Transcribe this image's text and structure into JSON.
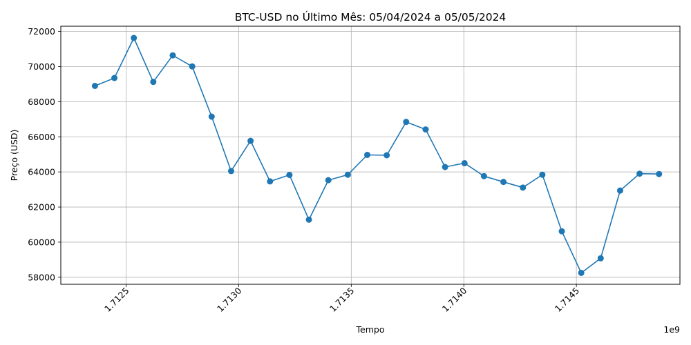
{
  "chart_data": {
    "type": "line",
    "title": "BTC-USD no Último Mês: 05/04/2024 a 05/05/2024",
    "xlabel": "Tempo",
    "ylabel": "Preço (USD)",
    "x_offset_label": "1e9",
    "xlim": [
      1712210000,
      1714960000
    ],
    "ylim": [
      57600,
      72300
    ],
    "x_ticks": [
      1712500000,
      1713000000,
      1713500000,
      1714000000,
      1714500000
    ],
    "x_tick_labels": [
      "1.7125",
      "1.7130",
      "1.7135",
      "1.7140",
      "1.7145"
    ],
    "y_ticks": [
      58000,
      60000,
      62000,
      64000,
      66000,
      68000,
      70000,
      72000
    ],
    "y_tick_labels": [
      "58000",
      "60000",
      "62000",
      "64000",
      "66000",
      "68000",
      "70000",
      "72000"
    ],
    "grid": true,
    "line_color": "#1f77b4",
    "series": [
      {
        "x": [
          1712361600,
          1712448000,
          1712534400,
          1712620800,
          1712707200,
          1712793600,
          1712880000,
          1712966400,
          1713052800,
          1713139200,
          1713225600,
          1713312000,
          1713398400,
          1713484800,
          1713571200,
          1713657600,
          1713744000,
          1713830400,
          1713916800,
          1714003200,
          1714089600,
          1714176000,
          1714262400,
          1714348800,
          1714435200,
          1714521600,
          1714608000,
          1714694400,
          1714780800,
          1714867200
        ],
        "y": [
          68900,
          69350,
          71630,
          69130,
          70640,
          70010,
          67150,
          64050,
          65770,
          63460,
          63830,
          61280,
          63530,
          63840,
          64970,
          64950,
          66850,
          66420,
          64280,
          64500,
          63760,
          63430,
          63110,
          63840,
          60620,
          58250,
          59080,
          62940,
          63900,
          63880
        ]
      }
    ]
  }
}
